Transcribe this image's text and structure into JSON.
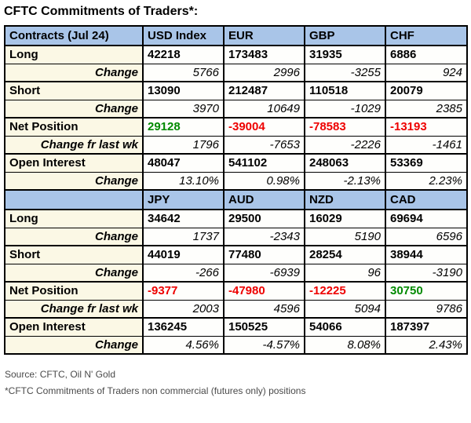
{
  "title": "CFTC Commitments of Traders*:",
  "colors": {
    "header_bg": "#a9c5e8",
    "label_bg": "#fbf8e5",
    "data_bg": "#fefefc",
    "positive": "#008a00",
    "negative": "#ee0000",
    "border": "#000000",
    "footer_text": "#4a4a4a"
  },
  "chart_data": {
    "type": "table",
    "title": "CFTC Commitments of Traders*:",
    "row_labels": [
      "Long",
      "Change",
      "Short",
      "Change",
      "Net Position",
      "Change fr last wk",
      "Open Interest",
      "Change"
    ],
    "sections": [
      {
        "header": [
          "Contracts (Jul 24)",
          "USD Index",
          "EUR",
          "GBP",
          "CHF"
        ],
        "rows": [
          {
            "label": "Long",
            "style": "main",
            "values": [
              "42218",
              "173483",
              "31935",
              "6886"
            ]
          },
          {
            "label": "Change",
            "style": "change",
            "values": [
              "5766",
              "2996",
              "-3255",
              "924"
            ]
          },
          {
            "label": "Short",
            "style": "main",
            "values": [
              "13090",
              "212487",
              "110518",
              "20079"
            ]
          },
          {
            "label": "Change",
            "style": "change",
            "values": [
              "3970",
              "10649",
              "-1029",
              "2385"
            ]
          },
          {
            "label": "Net Position",
            "style": "net",
            "values": [
              "29128",
              "-39004",
              "-78583",
              "-13193"
            ]
          },
          {
            "label": "Change fr last wk",
            "style": "change",
            "values": [
              "1796",
              "-7653",
              "-2226",
              "-1461"
            ]
          },
          {
            "label": "Open Interest",
            "style": "main",
            "values": [
              "48047",
              "541102",
              "248063",
              "53369"
            ]
          },
          {
            "label": "Change",
            "style": "change",
            "values": [
              "13.10%",
              "0.98%",
              "-2.13%",
              "2.23%"
            ]
          }
        ]
      },
      {
        "header": [
          "",
          "JPY",
          "AUD",
          "NZD",
          "CAD"
        ],
        "rows": [
          {
            "label": "Long",
            "style": "main",
            "values": [
              "34642",
              "29500",
              "16029",
              "69694"
            ]
          },
          {
            "label": "Change",
            "style": "change",
            "values": [
              "1737",
              "-2343",
              "5190",
              "6596"
            ]
          },
          {
            "label": "Short",
            "style": "main",
            "values": [
              "44019",
              "77480",
              "28254",
              "38944"
            ]
          },
          {
            "label": "Change",
            "style": "change",
            "values": [
              "-266",
              "-6939",
              "96",
              "-3190"
            ]
          },
          {
            "label": "Net Position",
            "style": "net",
            "values": [
              "-9377",
              "-47980",
              "-12225",
              "30750"
            ]
          },
          {
            "label": "Change fr last wk",
            "style": "change",
            "values": [
              "2003",
              "4596",
              "5094",
              "9786"
            ]
          },
          {
            "label": "Open Interest",
            "style": "main",
            "values": [
              "136245",
              "150525",
              "54066",
              "187397"
            ]
          },
          {
            "label": "Change",
            "style": "change",
            "values": [
              "4.56%",
              "-4.57%",
              "8.08%",
              "2.43%"
            ]
          }
        ]
      }
    ]
  },
  "footer": {
    "source": "Source: CFTC, Oil N' Gold",
    "note": "*CFTC Commitments of Traders non commercial (futures only) positions"
  }
}
